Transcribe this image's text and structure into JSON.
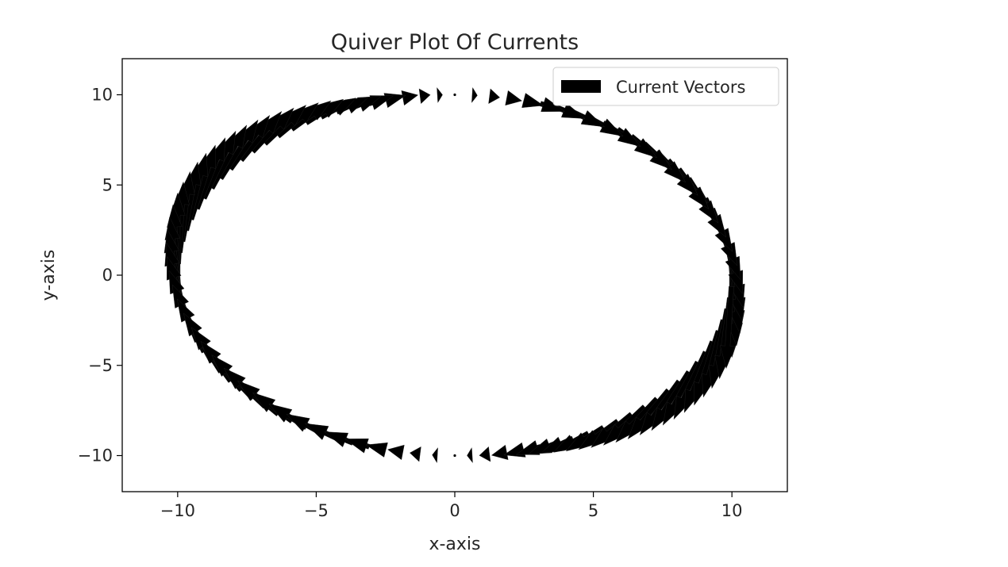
{
  "chart_data": {
    "type": "quiver",
    "title": "Quiver Plot Of Currents",
    "xlabel": "x-axis",
    "ylabel": "y-axis",
    "xlim": [
      -12,
      12
    ],
    "ylim": [
      -12,
      12
    ],
    "xticks": [
      -10,
      -5,
      0,
      5,
      10
    ],
    "yticks": [
      -10,
      -5,
      0,
      5,
      10
    ],
    "xtick_labels": [
      "−10",
      "−5",
      "0",
      "5",
      "10"
    ],
    "ytick_labels": [
      "−10",
      "−5",
      "0",
      "5",
      "10"
    ],
    "grid": false,
    "legend": {
      "position": "top-right",
      "entries": [
        "Current Vectors"
      ]
    },
    "field": {
      "description": "circle of radius 10, vectors tangential (clockwise), magnitude grows with |x|",
      "radius": 10,
      "num_vectors": 100,
      "u_equals": "y*|x|/10",
      "v_equals": "-x*|x|/10"
    },
    "colors": {
      "arrows": "#000000",
      "axes": "#000000",
      "text": "#262626"
    }
  }
}
